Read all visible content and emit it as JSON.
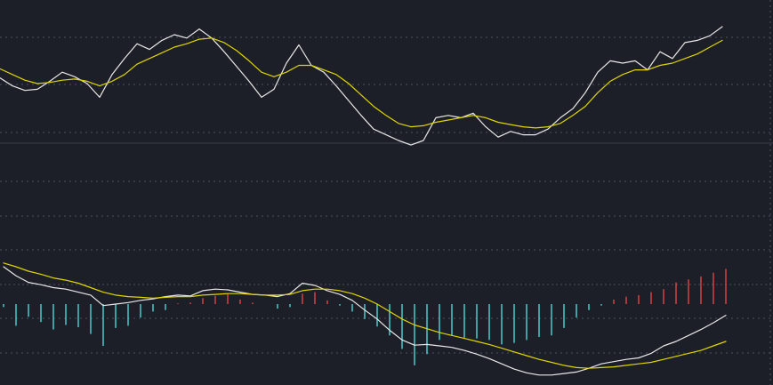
{
  "colors": {
    "background": "#1c1f27",
    "fast_line": "#e8e8e8",
    "slow_line": "#e0d500",
    "bar_positive": "#e04545",
    "bar_negative": "#4fd6d8"
  },
  "chart_data": [
    {
      "type": "line",
      "panel": "top",
      "title": "",
      "grid": true,
      "ylim": [
        0,
        1
      ],
      "x": [
        0,
        14,
        28,
        42,
        56,
        70,
        84,
        98,
        112,
        126,
        140,
        154,
        168,
        182,
        196,
        210,
        224,
        238,
        252,
        266,
        280,
        294,
        308,
        322,
        336,
        350,
        364,
        378,
        392,
        406,
        420,
        434,
        448,
        462,
        476,
        490,
        504,
        518,
        532,
        546,
        560,
        574,
        588,
        602,
        616,
        630,
        644,
        658,
        672,
        686,
        700,
        714,
        728,
        742,
        756,
        770,
        784,
        798,
        812
      ],
      "series": [
        {
          "role": "fast",
          "values": [
            0.55,
            0.48,
            0.44,
            0.45,
            0.52,
            0.6,
            0.56,
            0.5,
            0.38,
            0.58,
            0.72,
            0.85,
            0.8,
            0.88,
            0.93,
            0.9,
            0.98,
            0.9,
            0.78,
            0.65,
            0.52,
            0.38,
            0.45,
            0.68,
            0.84,
            0.66,
            0.6,
            0.48,
            0.35,
            0.22,
            0.1,
            0.05,
            0.0,
            -0.04,
            0.0,
            0.2,
            0.22,
            0.2,
            0.24,
            0.12,
            0.03,
            0.08,
            0.05,
            0.05,
            0.1,
            0.2,
            0.28,
            0.42,
            0.6,
            0.7,
            0.68,
            0.7,
            0.62,
            0.78,
            0.72,
            0.86,
            0.88,
            0.92,
            1.0
          ]
        },
        {
          "role": "slow",
          "values": [
            0.63,
            0.58,
            0.53,
            0.5,
            0.51,
            0.53,
            0.54,
            0.52,
            0.48,
            0.52,
            0.58,
            0.67,
            0.72,
            0.77,
            0.82,
            0.85,
            0.89,
            0.9,
            0.86,
            0.79,
            0.7,
            0.6,
            0.56,
            0.6,
            0.66,
            0.66,
            0.62,
            0.58,
            0.5,
            0.4,
            0.3,
            0.22,
            0.15,
            0.12,
            0.13,
            0.16,
            0.18,
            0.2,
            0.22,
            0.2,
            0.16,
            0.14,
            0.12,
            0.11,
            0.12,
            0.15,
            0.22,
            0.3,
            0.42,
            0.52,
            0.58,
            0.62,
            0.62,
            0.66,
            0.68,
            0.72,
            0.76,
            0.82,
            0.88
          ]
        }
      ]
    },
    {
      "type": "bar",
      "panel": "bottom",
      "title": "",
      "grid": true,
      "ylim": [
        -1,
        1
      ],
      "x": [
        0,
        14,
        28,
        42,
        56,
        70,
        84,
        98,
        112,
        126,
        140,
        154,
        168,
        182,
        196,
        210,
        224,
        238,
        252,
        266,
        280,
        294,
        308,
        322,
        336,
        350,
        364,
        378,
        392,
        406,
        420,
        434,
        448,
        462,
        476,
        490,
        504,
        518,
        532,
        546,
        560,
        574,
        588,
        602,
        616,
        630,
        644,
        658,
        672,
        686,
        700,
        714,
        728,
        742,
        756,
        770,
        784,
        798,
        812
      ],
      "series": [
        {
          "role": "fast",
          "values": [
            0.5,
            0.38,
            0.29,
            0.26,
            0.22,
            0.2,
            0.16,
            0.12,
            -0.02,
            0.0,
            0.02,
            0.05,
            0.07,
            0.1,
            0.12,
            0.11,
            0.18,
            0.2,
            0.19,
            0.16,
            0.13,
            0.12,
            0.1,
            0.14,
            0.28,
            0.25,
            0.18,
            0.13,
            0.05,
            -0.08,
            -0.2,
            -0.35,
            -0.48,
            -0.55,
            -0.54,
            -0.56,
            -0.58,
            -0.62,
            -0.67,
            -0.73,
            -0.8,
            -0.87,
            -0.92,
            -0.95,
            -0.95,
            -0.93,
            -0.91,
            -0.86,
            -0.8,
            -0.77,
            -0.74,
            -0.72,
            -0.66,
            -0.56,
            -0.5,
            -0.42,
            -0.34,
            -0.25,
            -0.15
          ]
        },
        {
          "role": "slow",
          "values": [
            0.55,
            0.5,
            0.44,
            0.4,
            0.35,
            0.32,
            0.28,
            0.22,
            0.16,
            0.12,
            0.1,
            0.09,
            0.08,
            0.09,
            0.1,
            0.1,
            0.12,
            0.13,
            0.14,
            0.14,
            0.13,
            0.12,
            0.12,
            0.13,
            0.18,
            0.2,
            0.2,
            0.18,
            0.14,
            0.08,
            0.0,
            -0.1,
            -0.2,
            -0.28,
            -0.33,
            -0.38,
            -0.42,
            -0.46,
            -0.5,
            -0.54,
            -0.59,
            -0.64,
            -0.69,
            -0.74,
            -0.78,
            -0.82,
            -0.85,
            -0.86,
            -0.85,
            -0.84,
            -0.82,
            -0.8,
            -0.78,
            -0.74,
            -0.7,
            -0.66,
            -0.62,
            -0.56,
            -0.5
          ]
        },
        {
          "role": "histogram",
          "values": [
            -0.04,
            -0.29,
            -0.17,
            -0.24,
            -0.34,
            -0.28,
            -0.31,
            -0.4,
            -0.56,
            -0.32,
            -0.29,
            -0.18,
            -0.1,
            -0.08,
            0.01,
            0.02,
            0.08,
            0.11,
            0.14,
            0.06,
            0.02,
            0.0,
            -0.06,
            -0.04,
            0.14,
            0.16,
            0.05,
            -0.02,
            -0.1,
            -0.2,
            -0.3,
            -0.42,
            -0.6,
            -0.82,
            -0.67,
            -0.48,
            -0.42,
            -0.45,
            -0.46,
            -0.48,
            -0.54,
            -0.52,
            -0.48,
            -0.44,
            -0.42,
            -0.32,
            -0.18,
            -0.08,
            -0.02,
            0.06,
            0.1,
            0.12,
            0.16,
            0.2,
            0.29,
            0.33,
            0.37,
            0.42,
            0.47
          ]
        }
      ]
    }
  ]
}
